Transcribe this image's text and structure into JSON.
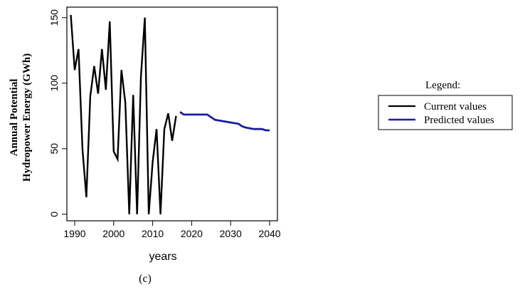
{
  "chart_data": {
    "type": "line",
    "title": "",
    "xlabel": "years",
    "ylabel_lines": [
      "Annual Potential",
      "Hydropower Energy (GWh)"
    ],
    "caption": "(c)",
    "xlim": [
      1988,
      2042
    ],
    "ylim": [
      -5,
      158
    ],
    "x_ticks": [
      1990,
      2000,
      2010,
      2020,
      2030,
      2040
    ],
    "y_ticks": [
      0,
      50,
      100,
      150
    ],
    "grid": false,
    "legend": {
      "title": "Legend:",
      "placement": "right",
      "entries": [
        "Current values",
        "Predicted values"
      ]
    },
    "series": [
      {
        "name": "Current values",
        "color": "#000000",
        "x": [
          1989,
          1990,
          1991,
          1992,
          1993,
          1994,
          1995,
          1996,
          1997,
          1998,
          1999,
          2000,
          2001,
          2002,
          2003,
          2004,
          2005,
          2006,
          2007,
          2008,
          2009,
          2010,
          2011,
          2012,
          2013,
          2014,
          2015,
          2016
        ],
        "y": [
          152,
          110,
          126,
          50,
          13,
          90,
          113,
          92,
          126,
          95,
          147,
          48,
          42,
          110,
          85,
          0,
          91,
          0,
          105,
          150,
          0,
          40,
          65,
          0,
          65,
          77,
          56,
          75
        ]
      },
      {
        "name": "Predicted values",
        "color": "#1a1aa8",
        "x": [
          2017,
          2018,
          2020,
          2022,
          2024,
          2025,
          2026,
          2028,
          2030,
          2032,
          2033,
          2034,
          2036,
          2038,
          2039,
          2040
        ],
        "y": [
          78,
          76,
          76,
          76,
          76,
          74,
          72,
          71,
          70,
          69,
          67,
          66,
          65,
          65,
          64,
          64
        ]
      }
    ]
  }
}
